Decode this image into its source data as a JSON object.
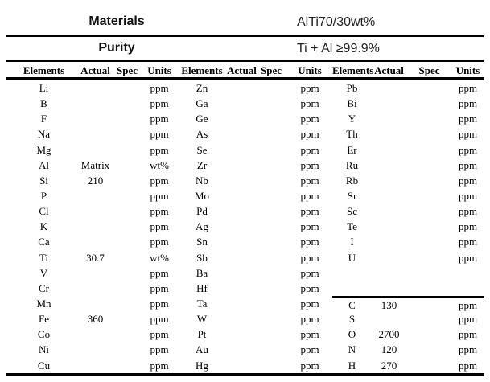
{
  "header": {
    "materials_label": "Materials",
    "materials_value": "AlTi70/30wt%",
    "purity_label": "Purity",
    "purity_value": "Ti + Al ≥99.9%"
  },
  "table": {
    "column_headers": [
      "Elements",
      "Actual",
      "Spec",
      "Units"
    ],
    "row_count": 19,
    "group3_divider_before_row": 15,
    "groups": [
      {
        "rows": [
          {
            "el": "Li",
            "actual": "",
            "spec": "",
            "units": "ppm"
          },
          {
            "el": "B",
            "actual": "",
            "spec": "",
            "units": "ppm"
          },
          {
            "el": "F",
            "actual": "",
            "spec": "",
            "units": "ppm"
          },
          {
            "el": "Na",
            "actual": "",
            "spec": "",
            "units": "ppm"
          },
          {
            "el": "Mg",
            "actual": "",
            "spec": "",
            "units": "ppm"
          },
          {
            "el": "Al",
            "actual": "Matrix",
            "spec": "",
            "units": "wt%"
          },
          {
            "el": "Si",
            "actual": "210",
            "spec": "",
            "units": "ppm"
          },
          {
            "el": "P",
            "actual": "",
            "spec": "",
            "units": "ppm"
          },
          {
            "el": "Cl",
            "actual": "",
            "spec": "",
            "units": "ppm"
          },
          {
            "el": "K",
            "actual": "",
            "spec": "",
            "units": "ppm"
          },
          {
            "el": "Ca",
            "actual": "",
            "spec": "",
            "units": "ppm"
          },
          {
            "el": "Ti",
            "actual": "30.7",
            "spec": "",
            "units": "wt%"
          },
          {
            "el": "V",
            "actual": "",
            "spec": "",
            "units": "ppm"
          },
          {
            "el": "Cr",
            "actual": "",
            "spec": "",
            "units": "ppm"
          },
          {
            "el": "Mn",
            "actual": "",
            "spec": "",
            "units": "ppm"
          },
          {
            "el": "Fe",
            "actual": "360",
            "spec": "",
            "units": "ppm"
          },
          {
            "el": "Co",
            "actual": "",
            "spec": "",
            "units": "ppm"
          },
          {
            "el": "Ni",
            "actual": "",
            "spec": "",
            "units": "ppm"
          },
          {
            "el": "Cu",
            "actual": "",
            "spec": "",
            "units": "ppm"
          }
        ]
      },
      {
        "rows": [
          {
            "el": "Zn",
            "actual": "",
            "spec": "",
            "units": "ppm"
          },
          {
            "el": "Ga",
            "actual": "",
            "spec": "",
            "units": "ppm"
          },
          {
            "el": "Ge",
            "actual": "",
            "spec": "",
            "units": "ppm"
          },
          {
            "el": "As",
            "actual": "",
            "spec": "",
            "units": "ppm"
          },
          {
            "el": "Se",
            "actual": "",
            "spec": "",
            "units": "ppm"
          },
          {
            "el": "Zr",
            "actual": "",
            "spec": "",
            "units": "ppm"
          },
          {
            "el": "Nb",
            "actual": "",
            "spec": "",
            "units": "ppm"
          },
          {
            "el": "Mo",
            "actual": "",
            "spec": "",
            "units": "ppm"
          },
          {
            "el": "Pd",
            "actual": "",
            "spec": "",
            "units": "ppm"
          },
          {
            "el": "Ag",
            "actual": "",
            "spec": "",
            "units": "ppm"
          },
          {
            "el": "Sn",
            "actual": "",
            "spec": "",
            "units": "ppm"
          },
          {
            "el": "Sb",
            "actual": "",
            "spec": "",
            "units": "ppm"
          },
          {
            "el": "Ba",
            "actual": "",
            "spec": "",
            "units": "ppm"
          },
          {
            "el": "Hf",
            "actual": "",
            "spec": "",
            "units": "ppm"
          },
          {
            "el": "Ta",
            "actual": "",
            "spec": "",
            "units": "ppm"
          },
          {
            "el": "W",
            "actual": "",
            "spec": "",
            "units": "ppm"
          },
          {
            "el": "Pt",
            "actual": "",
            "spec": "",
            "units": "ppm"
          },
          {
            "el": "Au",
            "actual": "",
            "spec": "",
            "units": "ppm"
          },
          {
            "el": "Hg",
            "actual": "",
            "spec": "",
            "units": "ppm"
          }
        ]
      },
      {
        "rows": [
          {
            "el": "Pb",
            "actual": "",
            "spec": "",
            "units": "ppm"
          },
          {
            "el": "Bi",
            "actual": "",
            "spec": "",
            "units": "ppm"
          },
          {
            "el": "Y",
            "actual": "",
            "spec": "",
            "units": "ppm"
          },
          {
            "el": "Th",
            "actual": "",
            "spec": "",
            "units": "ppm"
          },
          {
            "el": "Er",
            "actual": "",
            "spec": "",
            "units": "ppm"
          },
          {
            "el": "Ru",
            "actual": "",
            "spec": "",
            "units": "ppm"
          },
          {
            "el": "Rb",
            "actual": "",
            "spec": "",
            "units": "ppm"
          },
          {
            "el": "Sr",
            "actual": "",
            "spec": "",
            "units": "ppm"
          },
          {
            "el": "Sc",
            "actual": "",
            "spec": "",
            "units": "ppm"
          },
          {
            "el": "Te",
            "actual": "",
            "spec": "",
            "units": "ppm"
          },
          {
            "el": "I",
            "actual": "",
            "spec": "",
            "units": "ppm"
          },
          {
            "el": "U",
            "actual": "",
            "spec": "",
            "units": "ppm"
          },
          {
            "el": "",
            "actual": "",
            "spec": "",
            "units": ""
          },
          {
            "el": "",
            "actual": "",
            "spec": "",
            "units": ""
          },
          {
            "el": "C",
            "actual": "130",
            "spec": "",
            "units": "ppm"
          },
          {
            "el": "S",
            "actual": "",
            "spec": "",
            "units": "ppm"
          },
          {
            "el": "O",
            "actual": "2700",
            "spec": "",
            "units": "ppm"
          },
          {
            "el": "N",
            "actual": "120",
            "spec": "",
            "units": "ppm"
          },
          {
            "el": "H",
            "actual": "270",
            "spec": "",
            "units": "ppm"
          }
        ]
      }
    ]
  }
}
